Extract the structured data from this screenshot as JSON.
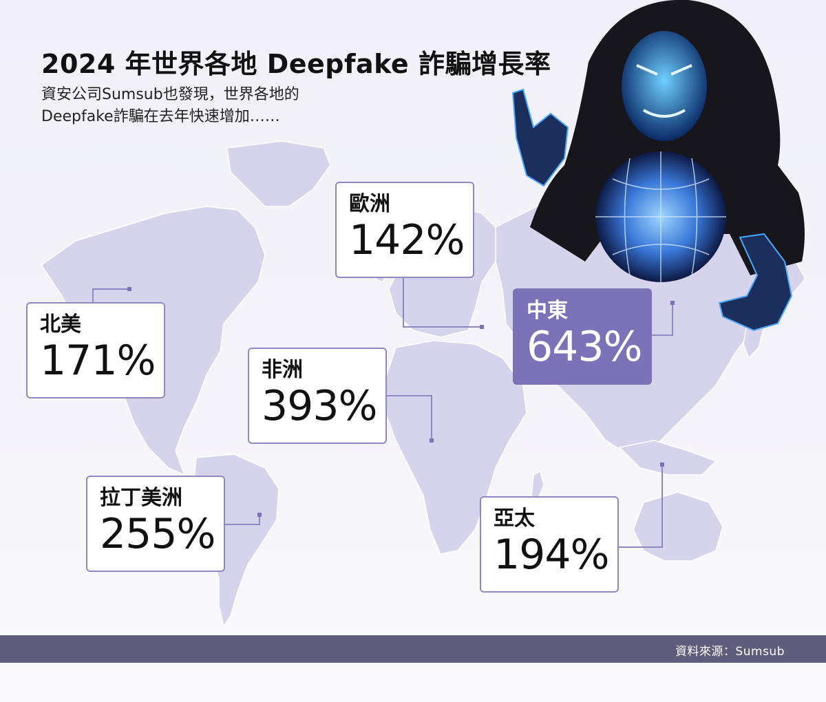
{
  "header": {
    "title": "2024 年世界各地 Deepfake 詐騙增長率",
    "subtitle_line1": "資安公司Sumsub也發現，世界各地的",
    "subtitle_line2": "Deepfake詐騙在去年快速增加……"
  },
  "footer": {
    "source": "資料來源：Sumsub"
  },
  "colors": {
    "map_fill": "#d6d3ec",
    "card_border": "#8e87c2",
    "highlight": "#7b72b7",
    "footer_bar": "#5f5d7c",
    "hacker_glow": "#4aa8ff"
  },
  "illustration": {
    "icon": "hooded-hacker-with-globe-icon"
  },
  "chart_data": {
    "type": "table",
    "unit": "%",
    "regions": [
      {
        "name": "歐洲",
        "value": 142,
        "label": "142%",
        "highlight": false
      },
      {
        "name": "北美",
        "value": 171,
        "label": "171%",
        "highlight": false
      },
      {
        "name": "中東",
        "value": 643,
        "label": "643%",
        "highlight": true
      },
      {
        "name": "非洲",
        "value": 393,
        "label": "393%",
        "highlight": false
      },
      {
        "name": "拉丁美洲",
        "value": 255,
        "label": "255%",
        "highlight": false
      },
      {
        "name": "亞太",
        "value": 194,
        "label": "194%",
        "highlight": false
      }
    ]
  }
}
